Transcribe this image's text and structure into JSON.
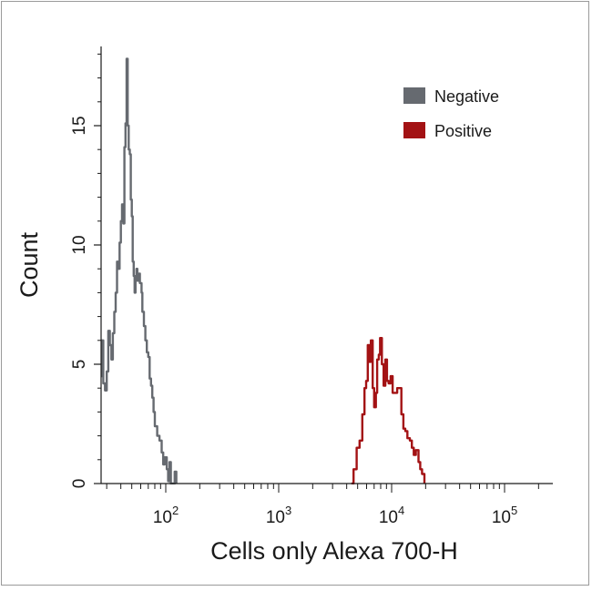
{
  "chart_data": {
    "type": "histogram",
    "title": "",
    "xlabel": "Cells only Alexa 700-H",
    "ylabel": "Count",
    "x_scale": "log",
    "xlim": [
      20,
      200000
    ],
    "ylim": [
      0,
      18
    ],
    "x_ticks": [
      {
        "base": "10",
        "exp": "2",
        "value": 100
      },
      {
        "base": "10",
        "exp": "3",
        "value": 1000
      },
      {
        "base": "10",
        "exp": "4",
        "value": 10000
      },
      {
        "base": "10",
        "exp": "5",
        "value": 100000
      }
    ],
    "y_ticks": [
      {
        "label": "0",
        "value": 0
      },
      {
        "label": "5",
        "value": 5
      },
      {
        "label": "10",
        "value": 10
      },
      {
        "label": "15",
        "value": 15
      }
    ],
    "legend": {
      "position": "top-right",
      "entries": [
        {
          "name": "Negative",
          "color": "#666a70"
        },
        {
          "name": "Positive",
          "color": "#a31214"
        }
      ]
    },
    "series": [
      {
        "name": "Negative",
        "color": "#666a70",
        "points": [
          [
            20,
            4.6
          ],
          [
            21,
            3.0
          ],
          [
            22,
            1.3
          ],
          [
            23,
            3.3
          ],
          [
            24,
            4.0
          ],
          [
            25,
            5.8
          ],
          [
            26,
            4.5
          ],
          [
            27,
            6.0
          ],
          [
            28,
            4.2
          ],
          [
            29,
            3.9
          ],
          [
            30,
            4.7
          ],
          [
            31,
            6.4
          ],
          [
            32,
            5.8
          ],
          [
            33,
            5.2
          ],
          [
            34,
            6.3
          ],
          [
            35,
            7.2
          ],
          [
            36,
            8.0
          ],
          [
            37,
            9.3
          ],
          [
            38,
            9.0
          ],
          [
            39,
            10.1
          ],
          [
            40,
            11.0
          ],
          [
            41,
            11.7
          ],
          [
            42,
            10.9
          ],
          [
            43,
            14.1
          ],
          [
            44,
            15.1
          ],
          [
            45,
            17.8
          ],
          [
            46,
            15.0
          ],
          [
            47,
            14.0
          ],
          [
            48,
            13.8
          ],
          [
            49,
            11.9
          ],
          [
            50,
            11.2
          ],
          [
            51,
            9.3
          ],
          [
            52,
            8.7
          ],
          [
            53,
            8.0
          ],
          [
            54,
            8.6
          ],
          [
            55,
            9.0
          ],
          [
            56,
            8.5
          ],
          [
            58,
            8.8
          ],
          [
            59,
            8.4
          ],
          [
            61,
            8.0
          ],
          [
            62,
            7.2
          ],
          [
            64,
            6.6
          ],
          [
            66,
            6.0
          ],
          [
            68,
            5.5
          ],
          [
            70,
            5.3
          ],
          [
            72,
            4.4
          ],
          [
            74,
            4.1
          ],
          [
            76,
            3.6
          ],
          [
            78,
            3.0
          ],
          [
            80,
            2.4
          ],
          [
            84,
            2.0
          ],
          [
            88,
            1.8
          ],
          [
            92,
            1.3
          ],
          [
            95,
            0.8
          ],
          [
            98,
            1.1
          ],
          [
            102,
            0.6
          ],
          [
            105,
            0.1
          ],
          [
            108,
            0.9
          ],
          [
            111,
            0.0
          ],
          [
            114,
            0.0
          ],
          [
            117,
            0.0
          ],
          [
            120,
            0.5
          ],
          [
            124,
            0.0
          ]
        ]
      },
      {
        "name": "Positive",
        "color": "#a31214",
        "points": [
          [
            4400,
            0.0
          ],
          [
            4600,
            0.6
          ],
          [
            4900,
            1.5
          ],
          [
            5200,
            1.8
          ],
          [
            5500,
            2.9
          ],
          [
            5750,
            4.0
          ],
          [
            5950,
            4.3
          ],
          [
            6150,
            5.8
          ],
          [
            6350,
            5.1
          ],
          [
            6550,
            6.0
          ],
          [
            6800,
            4.0
          ],
          [
            7000,
            3.2
          ],
          [
            7250,
            3.8
          ],
          [
            7450,
            5.2
          ],
          [
            7700,
            5.4
          ],
          [
            7900,
            6.1
          ],
          [
            8200,
            5.0
          ],
          [
            8500,
            4.1
          ],
          [
            8800,
            5.2
          ],
          [
            9100,
            4.3
          ],
          [
            9400,
            4.2
          ],
          [
            9800,
            4.5
          ],
          [
            10200,
            3.8
          ],
          [
            10700,
            3.8
          ],
          [
            11200,
            4.0
          ],
          [
            11700,
            4.0
          ],
          [
            12200,
            2.9
          ],
          [
            12700,
            2.3
          ],
          [
            13200,
            2.2
          ],
          [
            13800,
            1.9
          ],
          [
            14500,
            1.8
          ],
          [
            15100,
            1.5
          ],
          [
            15700,
            1.2
          ],
          [
            16400,
            1.4
          ],
          [
            17300,
            0.9
          ],
          [
            17900,
            0.6
          ],
          [
            18600,
            0.4
          ],
          [
            19500,
            0.0
          ]
        ]
      }
    ]
  }
}
